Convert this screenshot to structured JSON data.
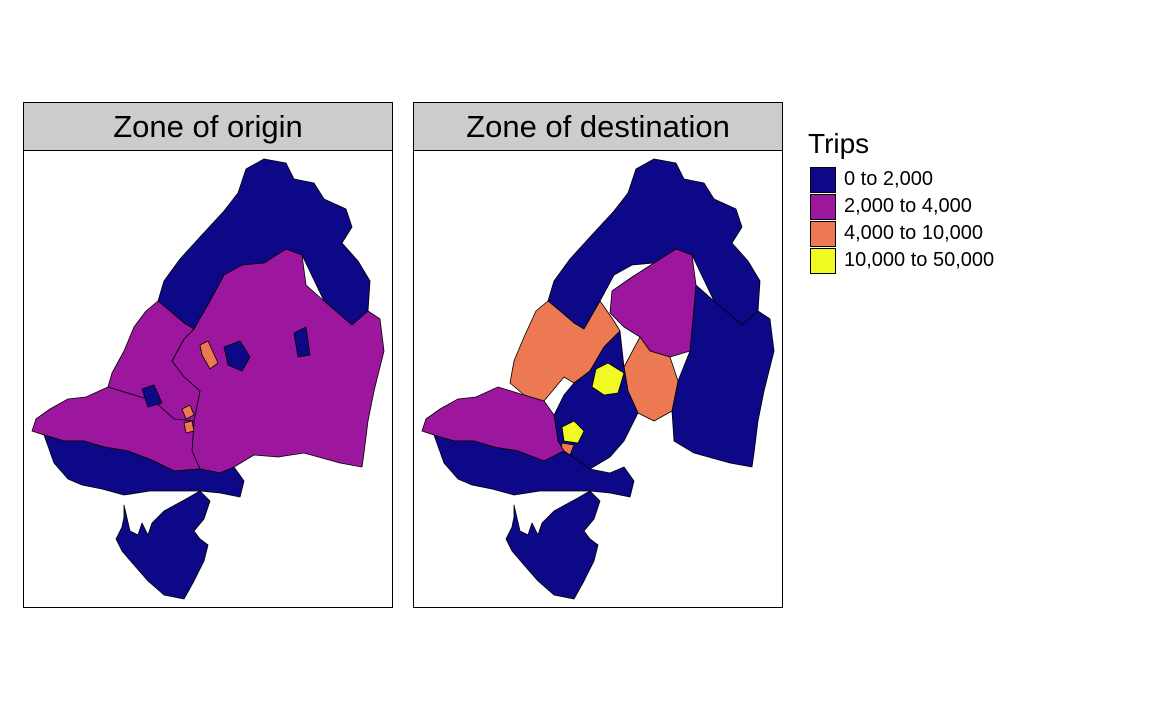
{
  "panels": [
    {
      "title": "Zone of origin"
    },
    {
      "title": "Zone of destination"
    }
  ],
  "legend": {
    "title": "Trips",
    "items": [
      {
        "label": "0 to 2,000",
        "color": "#0d0887"
      },
      {
        "label": "2,000 to 4,000",
        "color": "#9c179e"
      },
      {
        "label": "4,000 to 10,000",
        "color": "#ed7953"
      },
      {
        "label": "10,000 to 50,000",
        "color": "#f0f921"
      }
    ]
  },
  "map_fill_classes": {
    "origin": {
      "north": "0 to 2,000",
      "northeast": "0 to 2,000",
      "center_east_large": "2,000 to 4,000",
      "west_band": "2,000 to 4,000",
      "south_bands": "0 to 2,000",
      "south_island": "0 to 2,000",
      "central_small_zones": "4,000 to 10,000"
    },
    "destination": {
      "north": "0 to 2,000",
      "east_large": "0 to 2,000",
      "northwest_band": "4,000 to 10,000",
      "center_north": "2,000 to 4,000",
      "center_east": "4,000 to 10,000",
      "center_core": "10,000 to 50,000",
      "southwest": "2,000 to 4,000",
      "south_island": "0 to 2,000"
    }
  }
}
